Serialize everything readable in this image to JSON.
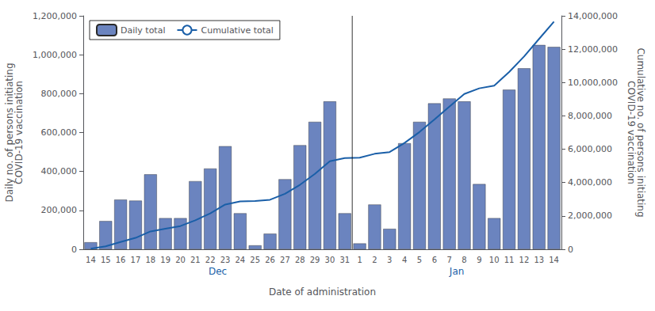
{
  "chart_data": {
    "type": "bar",
    "xlabel": "Date of administration",
    "ylabel": "Daily no. of persons initiating\nCOVID-19 vaccination",
    "y2label": "Cumulative no. of persons initiating\nCOVID-19 vaccination",
    "categories": [
      "14",
      "15",
      "16",
      "17",
      "18",
      "19",
      "20",
      "21",
      "22",
      "23",
      "24",
      "25",
      "26",
      "27",
      "28",
      "29",
      "30",
      "31",
      "1",
      "2",
      "3",
      "4",
      "5",
      "6",
      "7",
      "8",
      "9",
      "10",
      "11",
      "12",
      "13",
      "14"
    ],
    "series": [
      {
        "name": "Daily total",
        "type": "bar",
        "color": "#6b84bf",
        "values": [
          36000,
          145000,
          255000,
          250000,
          385000,
          160000,
          160000,
          350000,
          415000,
          530000,
          185000,
          20000,
          80000,
          360000,
          535000,
          655000,
          760000,
          185000,
          30000,
          230000,
          105000,
          545000,
          655000,
          750000,
          775000,
          760000,
          335000,
          160000,
          820000,
          930000,
          1050000,
          1040000
        ]
      },
      {
        "name": "Cumulative total",
        "type": "line",
        "axis": "y2",
        "color": "#1a5fa8",
        "values": [
          36000,
          181000,
          436000,
          686000,
          1071000,
          1231000,
          1391000,
          1741000,
          2156000,
          2686000,
          2871000,
          2891000,
          2971000,
          3331000,
          3866000,
          4521000,
          5281000,
          5466000,
          5496000,
          5726000,
          5831000,
          6376000,
          7031000,
          7781000,
          8556000,
          9316000,
          9651000,
          9811000,
          10631000,
          11561000,
          12611000,
          13651000
        ]
      }
    ],
    "annotations": [
      {
        "text": "Dec",
        "count": 18,
        "color": "#1a5fa8"
      },
      {
        "text": "Jan",
        "count": 14,
        "color": "#1a5fa8"
      }
    ],
    "ylim": [
      0,
      1200000
    ],
    "yticks": [
      0,
      {
        "value": 200000,
        "label": "200,000"
      },
      {
        "value": 400000,
        "label": "400,000"
      },
      {
        "value": 600000,
        "label": "600,000"
      },
      {
        "value": 800000,
        "label": "800,000"
      },
      {
        "value": 1000000,
        "label": "1,000,000"
      },
      {
        "value": 1200000,
        "label": "1,200,000"
      }
    ],
    "y2lim": [
      0,
      14000000
    ],
    "y2ticks": [
      0,
      {
        "value": 2000000,
        "label": "2,000,000"
      },
      {
        "value": 4000000,
        "label": "4,000,000"
      },
      {
        "value": 6000000,
        "label": "6,000,000"
      },
      {
        "value": 8000000,
        "label": "8,000,000"
      },
      {
        "value": 10000000,
        "label": "10,000,000"
      },
      {
        "value": 12000000,
        "label": "12,000,000"
      },
      {
        "value": 14000000,
        "label": "14,000,000"
      }
    ],
    "grid": false,
    "legend": "upper left"
  }
}
